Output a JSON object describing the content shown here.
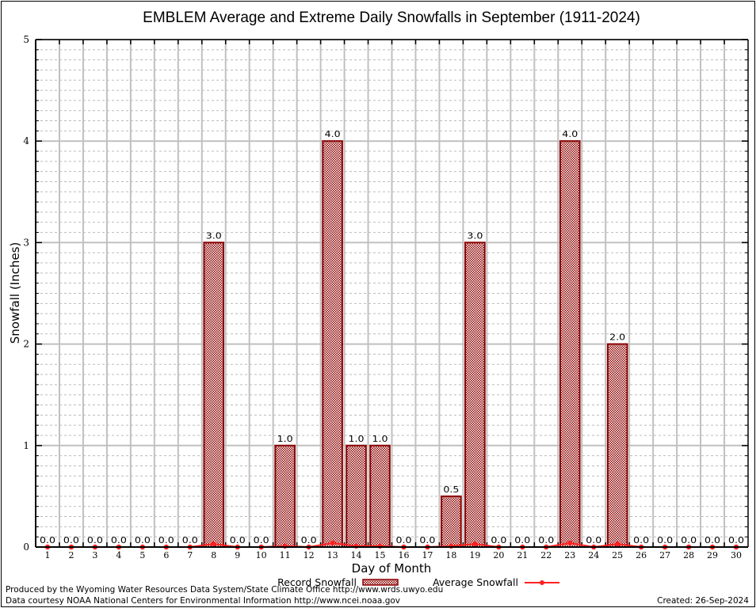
{
  "chart_data": {
    "type": "bar",
    "title": "EMBLEM Average and Extreme Daily Snowfalls in September (1911-2024)",
    "xlabel": "Day of Month",
    "ylabel": "Snowfall (Inches)",
    "ylim": [
      0,
      5
    ],
    "yticks": [
      "0",
      "1",
      "2",
      "3",
      "4",
      "5"
    ],
    "grid": true,
    "legend_position": "bottom-center",
    "categories": [
      "1",
      "2",
      "3",
      "4",
      "5",
      "6",
      "7",
      "8",
      "9",
      "10",
      "11",
      "12",
      "13",
      "14",
      "15",
      "16",
      "17",
      "18",
      "19",
      "20",
      "21",
      "22",
      "23",
      "24",
      "25",
      "26",
      "27",
      "28",
      "29",
      "30"
    ],
    "series": [
      {
        "name": "Record Snowfall",
        "kind": "bar",
        "color": "#8b0000",
        "values": [
          0,
          0,
          0,
          0,
          0,
          0,
          0,
          3.0,
          0,
          0,
          1.0,
          0,
          4.0,
          1.0,
          1.0,
          0,
          0,
          0.5,
          3.0,
          0,
          0,
          0,
          4.0,
          0,
          2.0,
          0,
          0,
          0,
          0,
          0
        ],
        "labels": [
          "0.0",
          "0.0",
          "0.0",
          "0.0",
          "0.0",
          "0.0",
          "0.0",
          "3.0",
          "0.0",
          "0.0",
          "1.0",
          "0.0",
          "4.0",
          "1.0",
          "1.0",
          "0.0",
          "0.0",
          "0.5",
          "3.0",
          "0.0",
          "0.0",
          "0.0",
          "4.0",
          "0.0",
          "2.0",
          "0.0",
          "0.0",
          "0.0",
          "0.0",
          "0.0"
        ]
      },
      {
        "name": "Average Snowfall",
        "kind": "line",
        "color": "#ff2020",
        "values": [
          0,
          0,
          0,
          0,
          0,
          0,
          0,
          0.03,
          0,
          0,
          0.01,
          0,
          0.04,
          0.01,
          0.01,
          0,
          0,
          0.01,
          0.03,
          0,
          0,
          0,
          0.04,
          0,
          0.03,
          0,
          0,
          0,
          0,
          0
        ]
      }
    ]
  },
  "credits": {
    "produced_by": "Produced by the Wyoming Water Resources Data System/State Climate Office http://www.wrds.uwyo.edu",
    "data_courtesy": "Data courtesy NOAA National Centers for Environmental Information http://www.ncei.noaa.gov",
    "created": "Created: 26-Sep-2024"
  }
}
